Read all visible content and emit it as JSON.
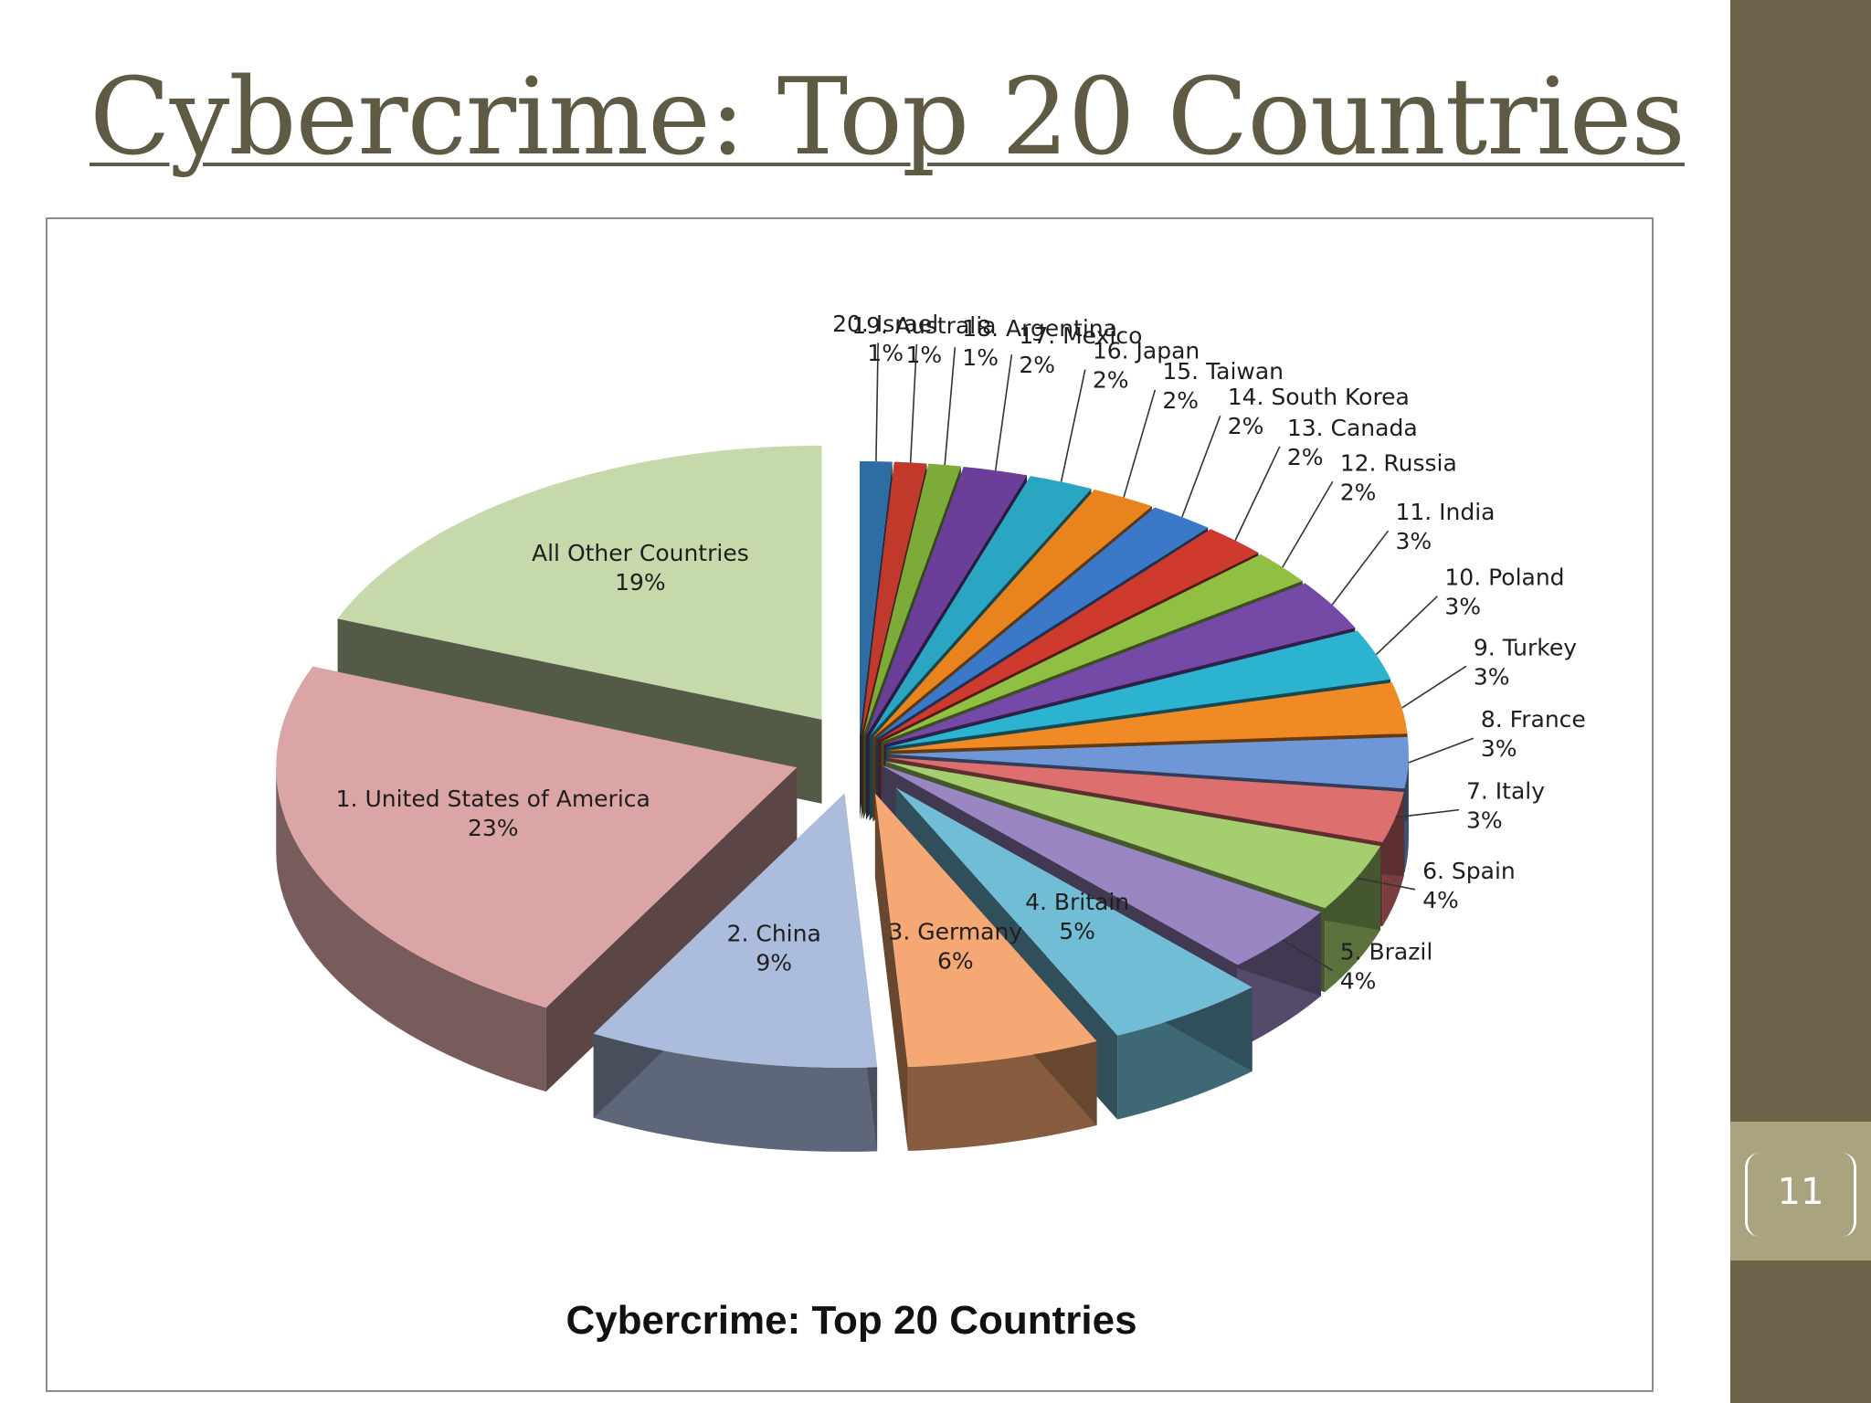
{
  "slide": {
    "title": "Cybercrime: Top 20 Countries",
    "page_number": "11"
  },
  "chart_data": {
    "type": "pie",
    "title": "Cybercrime: Top 20 Countries",
    "unit": "%",
    "slices": [
      {
        "label": "20. Israel",
        "value": 1,
        "value_label": "1%",
        "color": "#2e6da4"
      },
      {
        "label": "19. Australia",
        "value": 1,
        "value_label": "1%",
        "color": "#c0392b"
      },
      {
        "label": "18. Argentina",
        "value": 1,
        "value_label": "1%",
        "color": "#7cab3a"
      },
      {
        "label": "17. Mexico",
        "value": 2,
        "value_label": "2%",
        "color": "#6b3f99"
      },
      {
        "label": "16. Japan",
        "value": 2,
        "value_label": "2%",
        "color": "#2aa6c2"
      },
      {
        "label": "15. Taiwan",
        "value": 2,
        "value_label": "2%",
        "color": "#e8831e"
      },
      {
        "label": "14. South Korea",
        "value": 2,
        "value_label": "2%",
        "color": "#3b78c8"
      },
      {
        "label": "13. Canada",
        "value": 2,
        "value_label": "2%",
        "color": "#cf3a2e"
      },
      {
        "label": "12. Russia",
        "value": 2,
        "value_label": "2%",
        "color": "#8fbf43"
      },
      {
        "label": "11. India",
        "value": 3,
        "value_label": "3%",
        "color": "#7549a6"
      },
      {
        "label": "10. Poland",
        "value": 3,
        "value_label": "3%",
        "color": "#2bb3cf"
      },
      {
        "label": "9. Turkey",
        "value": 3,
        "value_label": "3%",
        "color": "#f08a24"
      },
      {
        "label": "8. France",
        "value": 3,
        "value_label": "3%",
        "color": "#6f96d6"
      },
      {
        "label": "7. Italy",
        "value": 3,
        "value_label": "3%",
        "color": "#de6f6f"
      },
      {
        "label": "6. Spain",
        "value": 4,
        "value_label": "4%",
        "color": "#a5cf6e"
      },
      {
        "label": "5. Brazil",
        "value": 4,
        "value_label": "4%",
        "color": "#9b86c4"
      },
      {
        "label": "4. Britain",
        "value": 5,
        "value_label": "5%",
        "color": "#72bdd6"
      },
      {
        "label": "3. Germany",
        "value": 6,
        "value_label": "6%",
        "color": "#f5a873"
      },
      {
        "label": "2. China",
        "value": 9,
        "value_label": "9%",
        "color": "#abbcdc"
      },
      {
        "label": "1. United States of America",
        "value": 23,
        "value_label": "23%",
        "color": "#dba5a5"
      },
      {
        "label": "All Other Countries",
        "value": 19,
        "value_label": "19%",
        "color": "#c6d9aa"
      }
    ]
  }
}
